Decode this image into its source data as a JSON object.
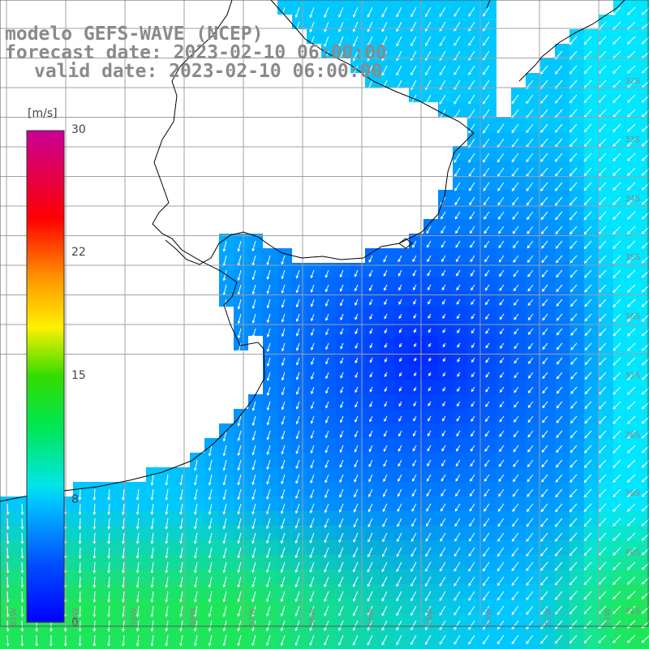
{
  "title": {
    "line1": "modelo GEFS-WAVE (NCEP)",
    "line2": "forecast date: 2023-02-10 06:00:00",
    "line3": "valid date: 2023-02-10 06:00:00"
  },
  "colorbar": {
    "unit": "[m/s]",
    "ticks": [
      "30",
      "22",
      "15",
      "8",
      "0"
    ]
  },
  "lat_labels": [
    "32S",
    "33S",
    "34S",
    "35S",
    "36S",
    "37S",
    "38S",
    "39S",
    "40S",
    "41S"
  ],
  "lon_labels": [
    "61W",
    "60W",
    "59W",
    "58W",
    "57W",
    "56W",
    "55W",
    "54W",
    "53W",
    "52W",
    "51W"
  ],
  "colors": {
    "land": "#ffffff",
    "grid": "#a0a0a0",
    "coast": "#000000",
    "arrow": "#ffffff"
  }
}
